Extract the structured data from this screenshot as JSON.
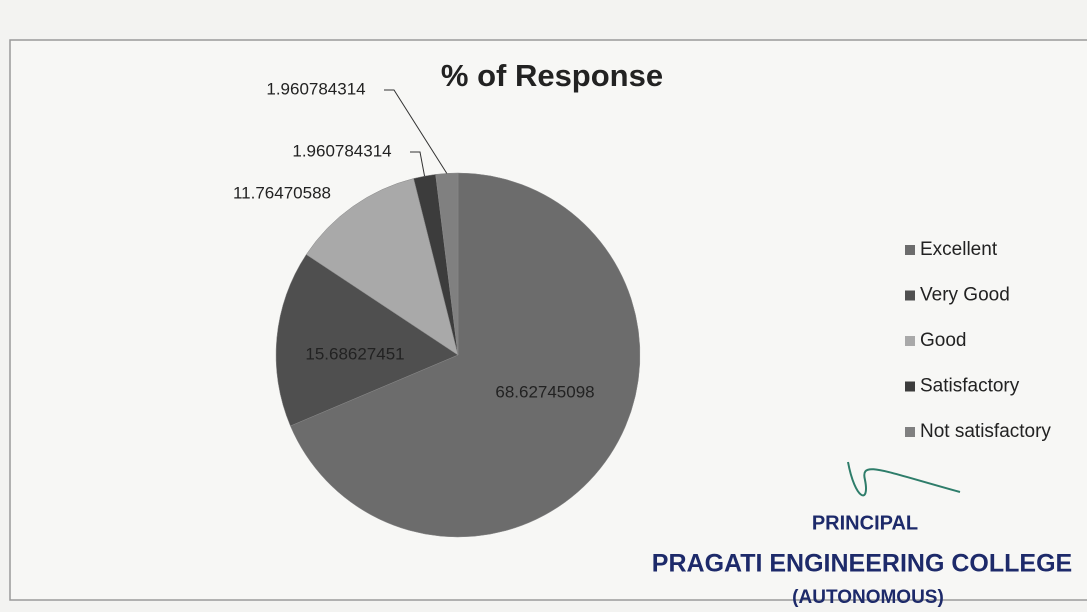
{
  "chart_data": {
    "type": "pie",
    "title": "% of Response",
    "categories": [
      "Excellent",
      "Very Good",
      "Good",
      "Satisfactory",
      "Not satisfactory"
    ],
    "values": [
      68.62745098,
      15.68627451,
      11.76470588,
      1.960784314,
      1.960784314
    ],
    "colors": [
      "#6c6c6c",
      "#4f4f4f",
      "#a9a9a9",
      "#3c3c3c",
      "#808080"
    ],
    "legend": "right",
    "annotations": [
      "PRINCIPAL",
      "PRAGATI ENGINEERING COLLEGE",
      "(AUTONOMOUS)"
    ]
  }
}
